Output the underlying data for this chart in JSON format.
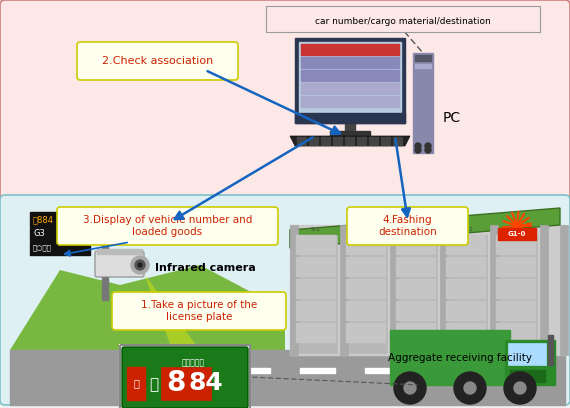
{
  "bg_color": "#f0f0f0",
  "top_box_color": "#fde8e8",
  "bottom_box_color": "#dff0f5",
  "label1_text": "1.Take a picture of the\nlicense plate",
  "label2_text": "2.Check association",
  "label3_text": "3.Display of vehicle number and\nloaded goods",
  "label4_text": "4.Fashing\ndestination",
  "pc_label": "PC",
  "db_label": "car number/cargo material/destination",
  "facility_label": "Aggregate receiving facility",
  "camera_label": "Infrared camera",
  "arrow_color": "#1565c0"
}
